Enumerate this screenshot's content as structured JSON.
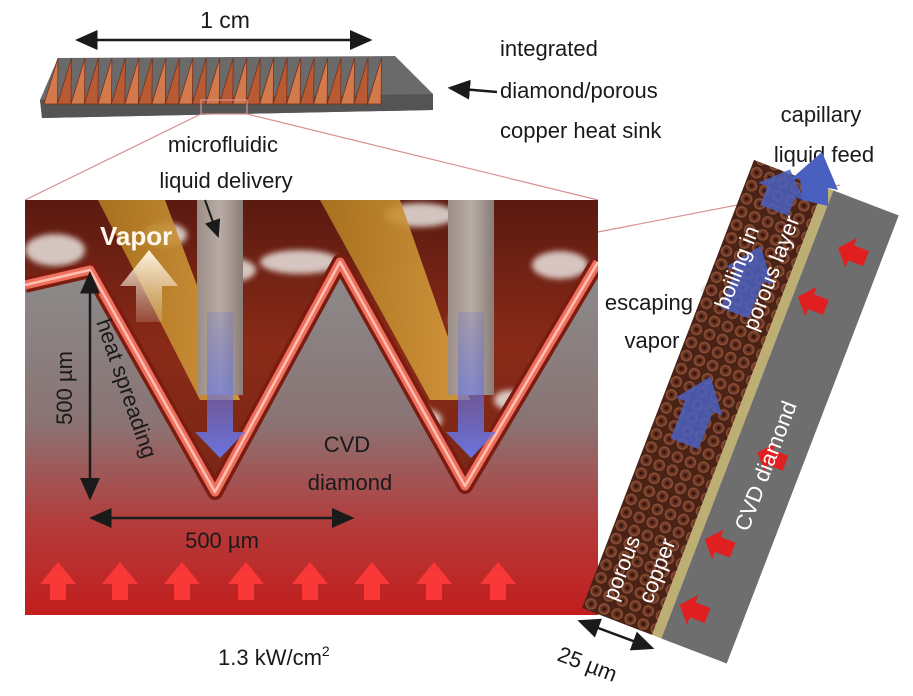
{
  "labels": {
    "top_dim": "1 cm",
    "heat_sink": [
      "integrated",
      "diamond/porous",
      "copper heat sink"
    ],
    "delivery": [
      "microfluidic",
      "liquid delivery"
    ],
    "capillary": [
      "capillary",
      "liquid feed"
    ],
    "vapor": "Vapor",
    "height_dim": "500 µm",
    "heat_spreading": "heat spreading",
    "cvd_main": [
      "CVD",
      "diamond"
    ],
    "width_dim": "500 µm",
    "heat_flux_value": "1.3 kW/cm",
    "heat_flux_exp": "2",
    "escaping": [
      "escaping",
      "vapor"
    ],
    "boiling": [
      "boiling in",
      "porous layer"
    ],
    "cvd_strip": "CVD diamond",
    "porous_copper": [
      "porous",
      "copper"
    ],
    "thickness_dim": "25 µm"
  },
  "colors": {
    "copper": "#c0603a",
    "diamond_glow": "#f07060",
    "heat_red": "#c81e1e",
    "arrow_blue": "#4a60c0",
    "gray": "#6e6e6e"
  }
}
